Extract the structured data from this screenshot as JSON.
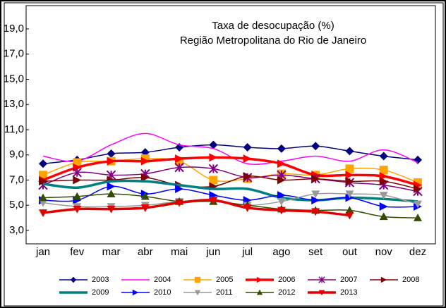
{
  "chart_data": {
    "type": "line",
    "title": "Taxa de desocupação (%)",
    "subtitle": "Região Metropolitana do Rio de Janeiro",
    "categories": [
      "jan",
      "fev",
      "mar",
      "abr",
      "mai",
      "jun",
      "jul",
      "ago",
      "set",
      "out",
      "nov",
      "dez"
    ],
    "ylim": [
      3,
      19
    ],
    "yticks": [
      {
        "value": 3,
        "label": "3,0"
      },
      {
        "value": 5,
        "label": "5,0"
      },
      {
        "value": 7,
        "label": "7,0"
      },
      {
        "value": 9,
        "label": "9,0"
      },
      {
        "value": 11,
        "label": "11,0"
      },
      {
        "value": 13,
        "label": "13,0"
      },
      {
        "value": 15,
        "label": "15,0"
      },
      {
        "value": 17,
        "label": "17,0"
      },
      {
        "value": 19,
        "label": "19,0"
      }
    ],
    "smooth": true,
    "series": [
      {
        "name": "2003",
        "color": "#000080",
        "marker": "diamond",
        "line_width": 1.5,
        "values": [
          8.3,
          8.6,
          9.1,
          9.2,
          9.6,
          9.8,
          9.6,
          9.5,
          9.7,
          9.3,
          8.9,
          8.6
        ]
      },
      {
        "name": "2004",
        "color": "#ff00ff",
        "marker": "none",
        "line_width": 1.5,
        "values": [
          8.9,
          8.5,
          9.8,
          10.7,
          9.8,
          9.5,
          8.3,
          8.5,
          8.9,
          8.5,
          9.4,
          8.4
        ]
      },
      {
        "name": "2005",
        "color": "#ffa500",
        "marker": "square",
        "line_width": 1.5,
        "values": [
          7.4,
          8.4,
          8.5,
          8.7,
          8.5,
          7.0,
          7.1,
          7.5,
          7.4,
          7.9,
          7.8,
          6.8
        ]
      },
      {
        "name": "2006",
        "color": "#ff0000",
        "marker": "triangle-right",
        "line_width": 3.5,
        "values": [
          7.0,
          8.0,
          8.5,
          8.5,
          8.7,
          8.8,
          8.7,
          8.3,
          7.4,
          7.4,
          7.3,
          6.6
        ]
      },
      {
        "name": "2007",
        "color": "#800080",
        "marker": "x",
        "line_width": 1.5,
        "values": [
          6.6,
          7.6,
          7.4,
          7.5,
          8.0,
          7.9,
          7.2,
          7.4,
          7.1,
          6.8,
          6.6,
          6.1
        ]
      },
      {
        "name": "2008",
        "color": "#800000",
        "marker": "triangle-right",
        "line_width": 1.5,
        "values": [
          6.9,
          7.0,
          7.0,
          7.2,
          6.6,
          6.5,
          7.3,
          7.0,
          7.1,
          6.9,
          6.9,
          6.3
        ]
      },
      {
        "name": "2009",
        "color": "#008080",
        "marker": "none",
        "line_width": 3.5,
        "values": [
          6.7,
          6.4,
          6.9,
          6.9,
          6.6,
          6.3,
          6.3,
          5.6,
          5.4,
          5.6,
          5.5,
          5.3
        ]
      },
      {
        "name": "2010",
        "color": "#0000ff",
        "marker": "triangle-right",
        "line_width": 1.5,
        "values": [
          5.4,
          5.4,
          6.5,
          5.9,
          6.3,
          5.8,
          5.4,
          5.8,
          5.4,
          5.6,
          4.9,
          4.9
        ]
      },
      {
        "name": "2011",
        "color": "#999999",
        "marker": "triangle-down",
        "line_width": 1.5,
        "values": [
          5.2,
          4.9,
          4.9,
          5.0,
          5.3,
          5.4,
          5.0,
          5.3,
          5.9,
          5.9,
          5.8,
          5.1
        ]
      },
      {
        "name": "2012",
        "color": "#334d00",
        "marker": "triangle-up",
        "line_width": 1.5,
        "values": [
          5.6,
          5.7,
          5.9,
          5.7,
          5.3,
          5.3,
          5.0,
          4.7,
          4.6,
          4.6,
          4.1,
          4.0
        ]
      },
      {
        "name": "2013",
        "color": "#e00000",
        "marker": "triangle-down",
        "line_width": 3.5,
        "values": [
          4.4,
          4.7,
          4.7,
          4.8,
          5.2,
          5.4,
          4.8,
          4.6,
          4.5,
          4.2,
          null,
          null
        ]
      }
    ]
  }
}
